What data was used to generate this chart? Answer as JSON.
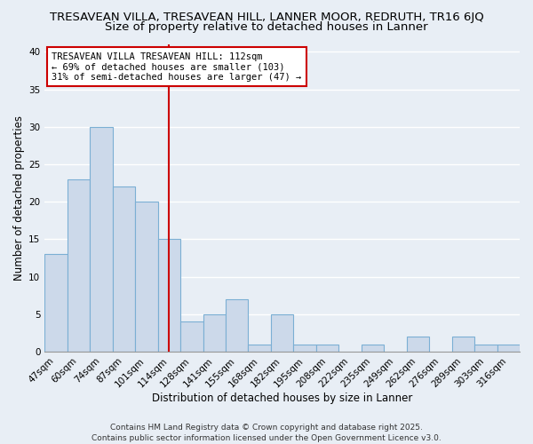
{
  "title1": "TRESAVEAN VILLA, TRESAVEAN HILL, LANNER MOOR, REDRUTH, TR16 6JQ",
  "title2": "Size of property relative to detached houses in Lanner",
  "xlabel": "Distribution of detached houses by size in Lanner",
  "ylabel": "Number of detached properties",
  "categories": [
    "47sqm",
    "60sqm",
    "74sqm",
    "87sqm",
    "101sqm",
    "114sqm",
    "128sqm",
    "141sqm",
    "155sqm",
    "168sqm",
    "182sqm",
    "195sqm",
    "208sqm",
    "222sqm",
    "235sqm",
    "249sqm",
    "262sqm",
    "276sqm",
    "289sqm",
    "303sqm",
    "316sqm"
  ],
  "values": [
    13,
    23,
    30,
    22,
    20,
    15,
    4,
    5,
    7,
    1,
    5,
    1,
    1,
    0,
    1,
    0,
    2,
    0,
    2,
    1,
    1
  ],
  "bar_color": "#ccd9ea",
  "bar_edge_color": "#7bafd4",
  "highlight_line_index": 5,
  "highlight_line_color": "#cc0000",
  "annotation_text": "TRESAVEAN VILLA TRESAVEAN HILL: 112sqm\n← 69% of detached houses are smaller (103)\n31% of semi-detached houses are larger (47) →",
  "annotation_box_color": "#ffffff",
  "annotation_box_edge": "#cc0000",
  "ylim": [
    0,
    41
  ],
  "yticks": [
    0,
    5,
    10,
    15,
    20,
    25,
    30,
    35,
    40
  ],
  "footer": "Contains HM Land Registry data © Crown copyright and database right 2025.\nContains public sector information licensed under the Open Government Licence v3.0.",
  "background_color": "#e8eef5",
  "plot_background": "#e8eef5",
  "grid_color": "#ffffff",
  "title1_fontsize": 9.5,
  "title2_fontsize": 9.5,
  "xlabel_fontsize": 8.5,
  "ylabel_fontsize": 8.5,
  "tick_fontsize": 7.5,
  "annotation_fontsize": 7.5,
  "footer_fontsize": 6.5
}
